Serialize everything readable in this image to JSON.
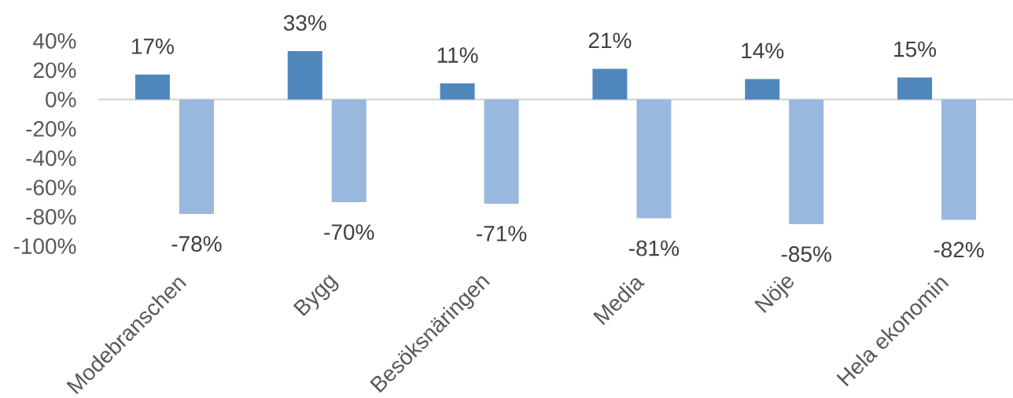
{
  "chart_data": {
    "type": "bar",
    "categories": [
      "Modebranschen",
      "Bygg",
      "Besöksnäringen",
      "Media",
      "Nöje",
      "Hela ekonomin"
    ],
    "series": [
      {
        "color": "#4f87bc",
        "values": [
          17,
          33,
          11,
          21,
          14,
          15
        ],
        "value_labels": [
          "17%",
          "33%",
          "11%",
          "21%",
          "14%",
          "15%"
        ]
      },
      {
        "color": "#98b8de",
        "values": [
          -78,
          -70,
          -71,
          -81,
          -85,
          -82
        ],
        "value_labels": [
          "-78%",
          "-70%",
          "-71%",
          "-81%",
          "-85%",
          "-82%"
        ]
      }
    ],
    "ylim": [
      -100,
      40
    ],
    "yticks": [
      {
        "value": -100,
        "label": "-100%"
      },
      {
        "value": -80,
        "label": "-80%"
      },
      {
        "value": -60,
        "label": "-60%"
      },
      {
        "value": -40,
        "label": "-40%"
      },
      {
        "value": -20,
        "label": "-20%"
      },
      {
        "value": 0,
        "label": "0%"
      },
      {
        "value": 20,
        "label": "20%"
      },
      {
        "value": 40,
        "label": "40%"
      }
    ]
  }
}
